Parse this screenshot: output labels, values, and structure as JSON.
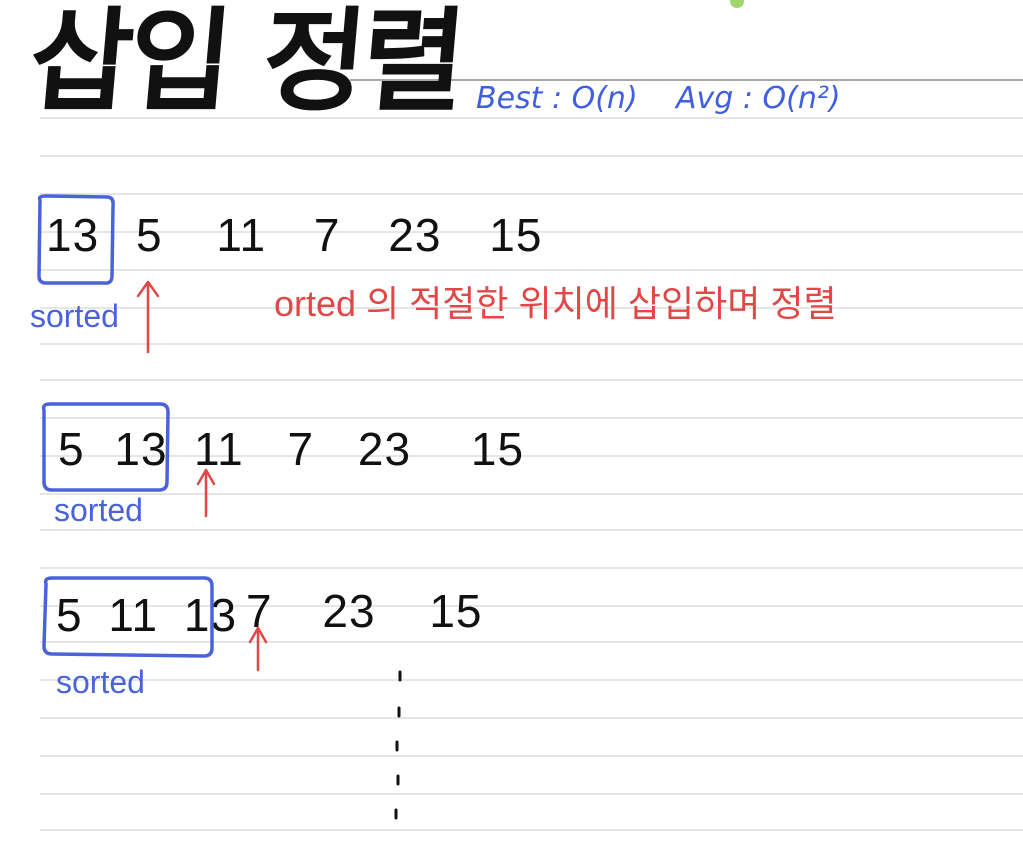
{
  "title": "삽입 정렬",
  "complexity": {
    "best": "Best : O(n)",
    "avg": "Avg : O(n²)"
  },
  "note": "orted 의 적절한 위치에 삽입하며 정렬",
  "rows": [
    {
      "sorted": [
        "13"
      ],
      "unsorted": [
        "5",
        "11",
        "7",
        "23",
        "15"
      ],
      "label": "sorted"
    },
    {
      "sorted": [
        "5",
        "13"
      ],
      "unsorted": [
        "11",
        "7",
        "23",
        "15"
      ],
      "label": "sorted"
    },
    {
      "sorted": [
        "5",
        "11",
        "13"
      ],
      "unsorted": [
        "7",
        "23",
        "15"
      ],
      "label": "sorted"
    }
  ],
  "colors": {
    "ink": "#111111",
    "blue": "#4a63d9",
    "red": "#e04848",
    "rule": "#d6d6d6",
    "dot": "#9ed86b"
  }
}
